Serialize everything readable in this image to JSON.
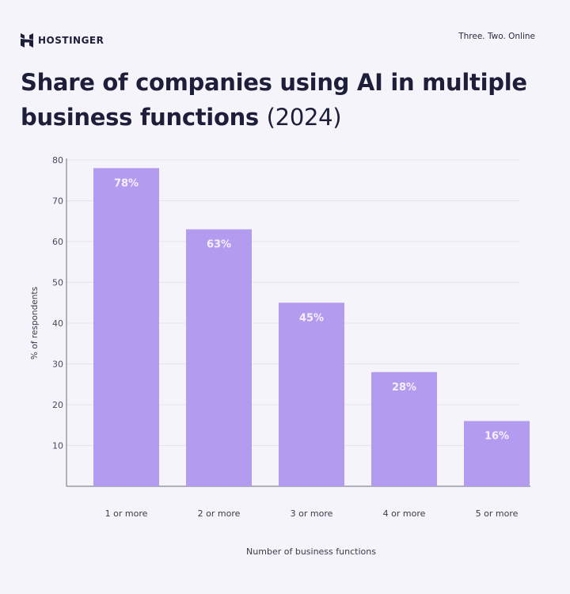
{
  "header": {
    "brand": "HOSTINGER",
    "tagline": "Three. Two. Online",
    "title_main": "Share of companies using AI in multiple business functions",
    "title_year": "(2024)"
  },
  "colors": {
    "bar": "#b39cf0",
    "title": "#1d1e3a",
    "background": "#f4f4fa",
    "grid": "#e3e3ec"
  },
  "chart_data": {
    "type": "bar",
    "title": "Share of companies using AI in multiple business functions (2024)",
    "xlabel": "Number of business functions",
    "ylabel": "% of respondents",
    "categories": [
      "1 or more",
      "2 or more",
      "3 or more",
      "4 or more",
      "5 or more"
    ],
    "values": [
      78,
      63,
      45,
      28,
      16
    ],
    "data_labels": [
      "78%",
      "63%",
      "45%",
      "28%",
      "16%"
    ],
    "ylim": [
      0,
      80
    ],
    "yticks": [
      10,
      20,
      30,
      40,
      50,
      60,
      70,
      80
    ],
    "grid": true,
    "legend": "none"
  }
}
